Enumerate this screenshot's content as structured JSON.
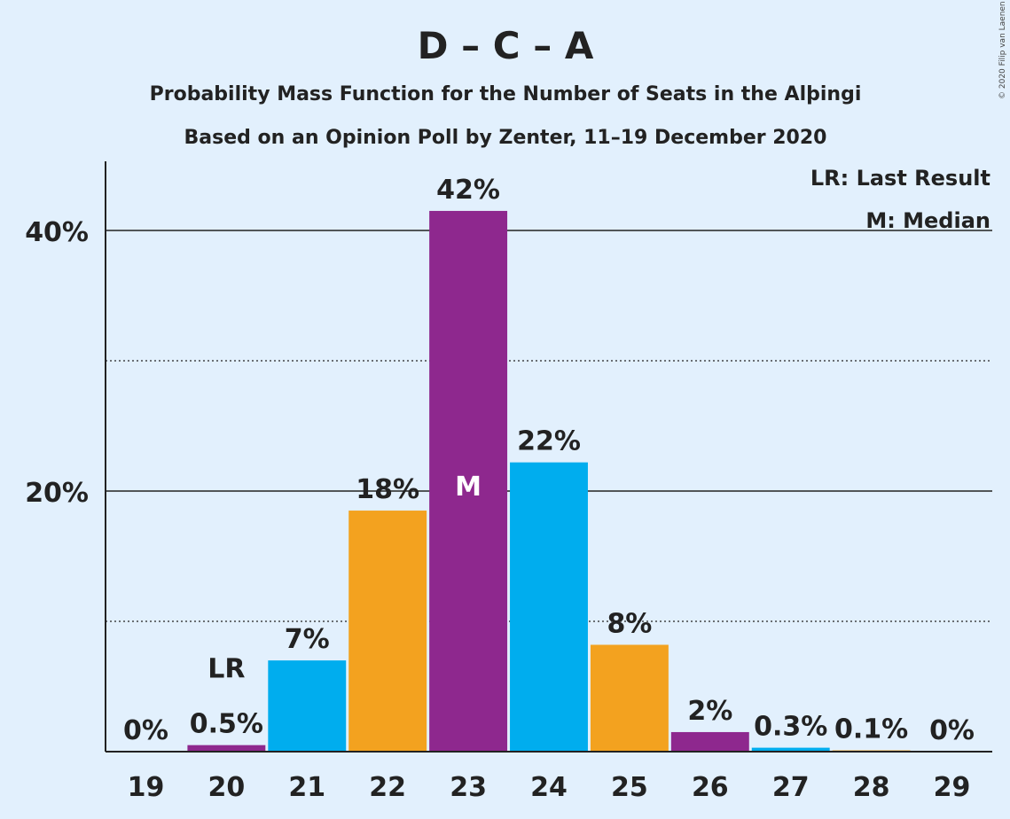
{
  "title": "D – C – A",
  "subtitle": "Probability Mass Function for the Number of Seats in the Alþingi",
  "subtitle2": "Based on an Opinion Poll by Zenter, 11–19 December 2020",
  "copyright": "© 2020 Filip van Laenen",
  "legend": {
    "last_result": "LR: Last Result",
    "median": "M: Median"
  },
  "colors": {
    "background": "#e2f0fd",
    "purple": "#8e288e",
    "blue": "#00adee",
    "orange": "#f3a21f",
    "text": "#222222"
  },
  "chart_data": {
    "type": "bar",
    "categories": [
      "19",
      "20",
      "21",
      "22",
      "23",
      "24",
      "25",
      "26",
      "27",
      "28",
      "29"
    ],
    "values": [
      0,
      0.5,
      7,
      18.5,
      41.5,
      22.2,
      8.2,
      1.5,
      0.3,
      0.1,
      0
    ],
    "labels": [
      "0%",
      "0.5%",
      "7%",
      "18%",
      "42%",
      "22%",
      "8%",
      "2%",
      "0.3%",
      "0.1%",
      "0%"
    ],
    "bar_colors": [
      "purple",
      "purple",
      "blue",
      "orange",
      "purple",
      "blue",
      "orange",
      "purple",
      "blue",
      "orange",
      "purple"
    ],
    "last_result_category": "20",
    "last_result_marker": "LR",
    "median_category": "23",
    "median_marker": "M",
    "y_ticks": [
      {
        "value": 20,
        "label": "20%"
      },
      {
        "value": 40,
        "label": "40%"
      }
    ],
    "minor_gridlines": [
      10,
      30
    ],
    "ylim": [
      0,
      45
    ],
    "grid": true,
    "legend_position": "top-right"
  }
}
